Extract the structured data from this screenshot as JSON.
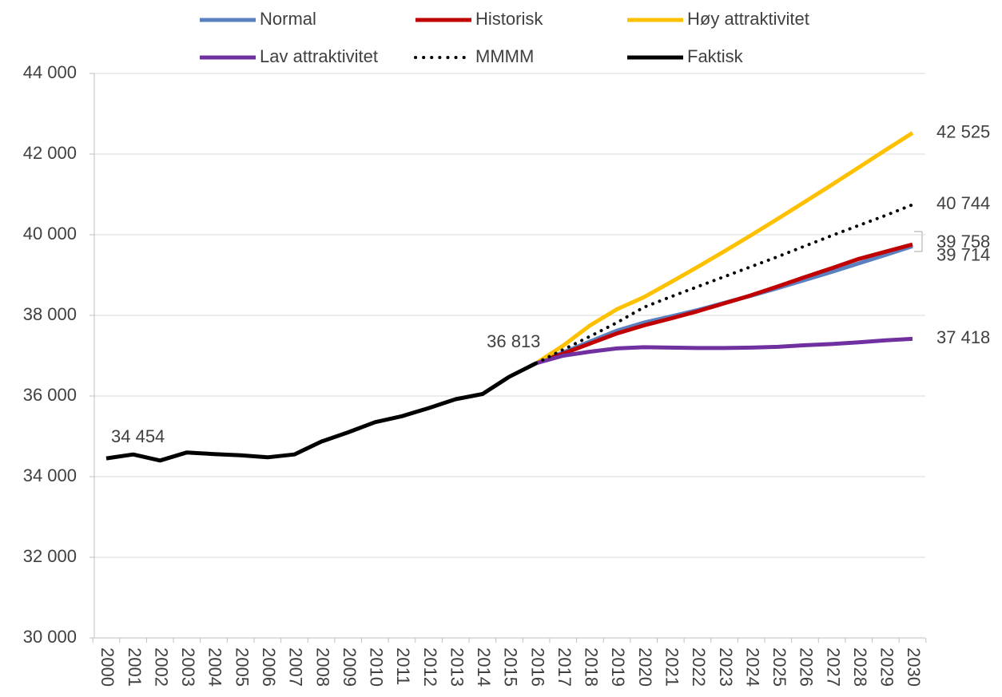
{
  "chart_data": {
    "type": "line",
    "categories": [
      "2000",
      "2001",
      "2002",
      "2003",
      "2004",
      "2005",
      "2006",
      "2007",
      "2008",
      "2009",
      "2010",
      "2011",
      "2012",
      "2013",
      "2014",
      "2015",
      "2016",
      "2017",
      "2018",
      "2019",
      "2020",
      "2021",
      "2022",
      "2023",
      "2024",
      "2025",
      "2026",
      "2027",
      "2028",
      "2029",
      "2030"
    ],
    "ylim": [
      30000,
      44000
    ],
    "yticks": [
      {
        "value": 30000,
        "label": "30 000"
      },
      {
        "value": 32000,
        "label": "32 000"
      },
      {
        "value": 34000,
        "label": "34 000"
      },
      {
        "value": 36000,
        "label": "36 000"
      },
      {
        "value": 38000,
        "label": "38 000"
      },
      {
        "value": 40000,
        "label": "40 000"
      },
      {
        "value": 42000,
        "label": "42 000"
      },
      {
        "value": 44000,
        "label": "44 000"
      }
    ],
    "grid": true,
    "legend": "top",
    "series": [
      {
        "name": "Normal",
        "color": "#5b80c0",
        "style": "solid",
        "values": [
          null,
          null,
          null,
          null,
          null,
          null,
          null,
          null,
          null,
          null,
          null,
          null,
          null,
          null,
          null,
          null,
          36813,
          37080,
          37350,
          37620,
          37820,
          37970,
          38130,
          38310,
          38490,
          38680,
          38880,
          39080,
          39290,
          39500,
          39714
        ],
        "value_labels": [
          null,
          null,
          null,
          null,
          null,
          null,
          null,
          null,
          null,
          null,
          null,
          null,
          null,
          null,
          null,
          null,
          null,
          null,
          null,
          null,
          null,
          null,
          null,
          null,
          null,
          null,
          null,
          null,
          null,
          null,
          "39 714"
        ]
      },
      {
        "name": "Historisk",
        "color": "#c00000",
        "style": "solid",
        "values": [
          null,
          null,
          null,
          null,
          null,
          null,
          null,
          null,
          null,
          null,
          null,
          null,
          null,
          null,
          null,
          null,
          36813,
          37050,
          37300,
          37550,
          37750,
          37920,
          38100,
          38300,
          38500,
          38720,
          38950,
          39170,
          39400,
          39580,
          39758
        ],
        "value_labels": [
          null,
          null,
          null,
          null,
          null,
          null,
          null,
          null,
          null,
          null,
          null,
          null,
          null,
          null,
          null,
          null,
          null,
          null,
          null,
          null,
          null,
          null,
          null,
          null,
          null,
          null,
          null,
          null,
          null,
          null,
          "39 758"
        ]
      },
      {
        "name": "Høy attraktivitet",
        "color": "#ffc000",
        "style": "solid",
        "values": [
          null,
          null,
          null,
          null,
          null,
          null,
          null,
          null,
          null,
          null,
          null,
          null,
          null,
          null,
          null,
          null,
          36813,
          37250,
          37750,
          38150,
          38450,
          38820,
          39200,
          39590,
          39990,
          40400,
          40820,
          41240,
          41670,
          42100,
          42525
        ],
        "value_labels": [
          null,
          null,
          null,
          null,
          null,
          null,
          null,
          null,
          null,
          null,
          null,
          null,
          null,
          null,
          null,
          null,
          null,
          null,
          null,
          null,
          null,
          null,
          null,
          null,
          null,
          null,
          null,
          null,
          null,
          null,
          "42 525"
        ]
      },
      {
        "name": "Lav attraktivitet",
        "color": "#7030a0",
        "style": "solid",
        "values": [
          null,
          null,
          null,
          null,
          null,
          null,
          null,
          null,
          null,
          null,
          null,
          null,
          null,
          null,
          null,
          null,
          36813,
          37000,
          37100,
          37180,
          37210,
          37200,
          37190,
          37190,
          37200,
          37220,
          37260,
          37290,
          37330,
          37380,
          37418
        ],
        "value_labels": [
          null,
          null,
          null,
          null,
          null,
          null,
          null,
          null,
          null,
          null,
          null,
          null,
          null,
          null,
          null,
          null,
          null,
          null,
          null,
          null,
          null,
          null,
          null,
          null,
          null,
          null,
          null,
          null,
          null,
          null,
          "37 418"
        ]
      },
      {
        "name": "MMMM",
        "color": "#000000",
        "style": "dotted",
        "values": [
          null,
          null,
          null,
          null,
          null,
          null,
          null,
          null,
          null,
          null,
          null,
          null,
          null,
          null,
          null,
          null,
          36813,
          37150,
          37480,
          37820,
          38200,
          38460,
          38710,
          38960,
          39210,
          39460,
          39720,
          39980,
          40230,
          40480,
          40744
        ],
        "value_labels": [
          null,
          null,
          null,
          null,
          null,
          null,
          null,
          null,
          null,
          null,
          null,
          null,
          null,
          null,
          null,
          null,
          null,
          null,
          null,
          null,
          null,
          null,
          null,
          null,
          null,
          null,
          null,
          null,
          null,
          null,
          "40 744"
        ]
      },
      {
        "name": "Faktisk",
        "color": "#000000",
        "style": "solid",
        "values": [
          34454,
          34550,
          34400,
          34600,
          34560,
          34530,
          34480,
          34550,
          34870,
          35100,
          35350,
          35500,
          35700,
          35920,
          36050,
          36480,
          36813,
          null,
          null,
          null,
          null,
          null,
          null,
          null,
          null,
          null,
          null,
          null,
          null,
          null,
          null
        ],
        "value_labels": [
          "34 454",
          null,
          null,
          null,
          null,
          null,
          null,
          null,
          null,
          null,
          null,
          null,
          null,
          null,
          null,
          null,
          "36 813",
          null,
          null,
          null,
          null,
          null,
          null,
          null,
          null,
          null,
          null,
          null,
          null,
          null,
          null
        ]
      }
    ]
  }
}
